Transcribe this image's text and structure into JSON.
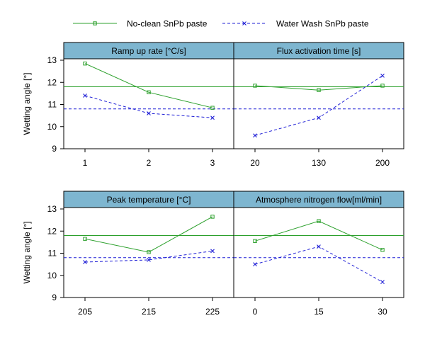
{
  "chart_data": {
    "type": "line",
    "legend": {
      "placement": "top",
      "entries": [
        {
          "label": "No-clean SnPb paste",
          "color": "#2ca02c",
          "marker": "square",
          "dash": "solid"
        },
        {
          "label": "Water Wash SnPb paste",
          "color": "#1f1fd6",
          "marker": "x",
          "dash": "dashed"
        }
      ]
    },
    "ylabel": "Wetting angle [°]",
    "ylim": [
      9,
      13
    ],
    "yticks": [
      "9",
      "10",
      "11",
      "12",
      "13"
    ],
    "reference_lines": {
      "no_clean_mean": 11.8,
      "water_wash_mean": 10.8
    },
    "header_color": "#7eb6d0",
    "panels": [
      {
        "title": "Ramp up rate [°C/s]",
        "categories": [
          "1",
          "2",
          "3"
        ],
        "series": [
          {
            "name": "No-clean SnPb paste",
            "values": [
              12.85,
              11.55,
              10.85
            ]
          },
          {
            "name": "Water Wash SnPb paste",
            "values": [
              11.4,
              10.6,
              10.4
            ]
          }
        ]
      },
      {
        "title": "Flux activation time [s]",
        "categories": [
          "20",
          "130",
          "200"
        ],
        "series": [
          {
            "name": "No-clean SnPb paste",
            "values": [
              11.85,
              11.65,
              11.85
            ]
          },
          {
            "name": "Water Wash SnPb paste",
            "values": [
              9.6,
              10.4,
              12.3
            ]
          }
        ]
      },
      {
        "title": "Peak temperature [°C]",
        "categories": [
          "205",
          "215",
          "225"
        ],
        "series": [
          {
            "name": "No-clean SnPb paste",
            "values": [
              11.65,
              11.05,
              12.65
            ]
          },
          {
            "name": "Water Wash SnPb paste",
            "values": [
              10.6,
              10.7,
              11.1
            ]
          }
        ]
      },
      {
        "title": "Atmosphere nitrogen flow[ml/min]",
        "categories": [
          "0",
          "15",
          "30"
        ],
        "series": [
          {
            "name": "No-clean SnPb paste",
            "values": [
              11.55,
              12.45,
              11.15
            ]
          },
          {
            "name": "Water Wash SnPb paste",
            "values": [
              10.5,
              11.3,
              9.7
            ]
          }
        ]
      }
    ]
  }
}
